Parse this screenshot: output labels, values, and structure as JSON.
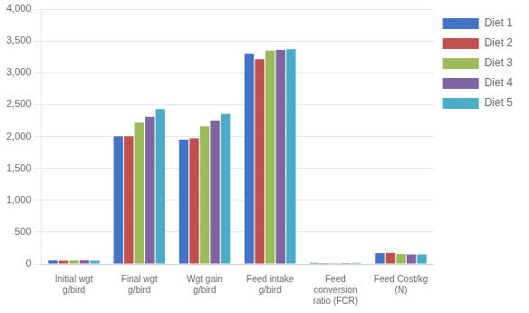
{
  "chart_data": {
    "type": "bar",
    "categories": [
      "Initial wgt\ng/bird",
      "Final wgt\ng/bird",
      "Wgt gain\ng/bird",
      "Feed intake\ng/bird",
      "Feed\nconversion\nratio (FCR)",
      "Feed Cost/kg\n(N)"
    ],
    "series": [
      {
        "name": "Diet 1",
        "color": "#4472C4",
        "values": [
          57,
          2005,
          1950,
          3300,
          17,
          170
        ]
      },
      {
        "name": "Diet 2",
        "color": "#C0504D",
        "values": [
          55,
          2005,
          1970,
          3215,
          16,
          175
        ]
      },
      {
        "name": "Diet 3",
        "color": "#9BBB59",
        "values": [
          58,
          2220,
          2160,
          3350,
          16,
          155
        ]
      },
      {
        "name": "Diet 4",
        "color": "#8064A2",
        "values": [
          60,
          2310,
          2250,
          3360,
          16,
          150
        ]
      },
      {
        "name": "Diet 5",
        "color": "#4BACC6",
        "values": [
          55,
          2430,
          2355,
          3370,
          17,
          150
        ]
      }
    ],
    "ylim": [
      0,
      4000
    ],
    "yticks": [
      0,
      500,
      1000,
      1500,
      2000,
      2500,
      3000,
      3500,
      4000
    ],
    "grid": true,
    "legend": "right"
  }
}
